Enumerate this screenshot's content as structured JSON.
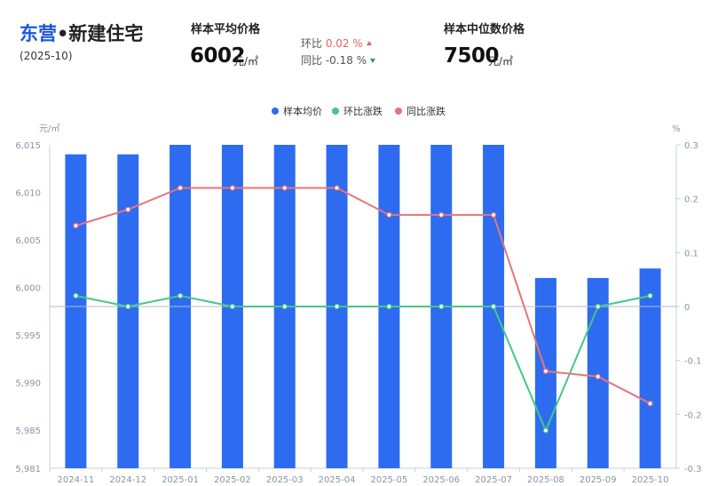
{
  "header": {
    "city": "东营",
    "title_rest": "•新建住宅",
    "period": "(2025-10)",
    "avg_label": "样本平均价格",
    "avg_value": "6002",
    "avg_unit": "元/㎡",
    "mom_label": "环比",
    "mom_value": "0.02 %",
    "yoy_label": "同比",
    "yoy_value": "-0.18 %",
    "median_label": "样本中位数价格",
    "median_value": "7500",
    "median_unit": "元/㎡"
  },
  "colors": {
    "bar": "#2d6cf0",
    "mom": "#45c883",
    "yoy": "#e8747a",
    "up": "#e8625f",
    "down": "#2e9a5a"
  },
  "chart_data": {
    "type": "bar",
    "categories": [
      "2024-11",
      "2024-12",
      "2025-01",
      "2025-02",
      "2025-03",
      "2025-04",
      "2025-05",
      "2025-06",
      "2025-07",
      "2025-08",
      "2025-09",
      "2025-10"
    ],
    "left_axis": {
      "unit": "元/㎡",
      "ylim": [
        5981,
        6015
      ],
      "ticks": [
        "6,015",
        "6,010",
        "6,005",
        "6,000",
        "5,995",
        "5,990",
        "5,985",
        "5,981"
      ]
    },
    "right_axis": {
      "unit": "%",
      "ylim": [
        -0.3,
        0.3
      ],
      "ticks": [
        "0.3",
        "0.2",
        "0.1",
        "0",
        "-0.1",
        "-0.2",
        "-0.3"
      ]
    },
    "series": [
      {
        "name": "样本均价",
        "type": "bar",
        "axis": "left",
        "values": [
          6014,
          6014,
          6015,
          6015,
          6015,
          6015,
          6015,
          6015,
          6015,
          6001,
          6001,
          6002
        ]
      },
      {
        "name": "环比涨跌",
        "type": "line",
        "axis": "right",
        "values": [
          0.02,
          0.0,
          0.02,
          0.0,
          0.0,
          0.0,
          0.0,
          0.0,
          0.0,
          -0.23,
          0.0,
          0.02
        ]
      },
      {
        "name": "同比涨跌",
        "type": "line",
        "axis": "right",
        "values": [
          0.15,
          0.18,
          0.22,
          0.22,
          0.22,
          0.22,
          0.17,
          0.17,
          0.17,
          -0.12,
          -0.13,
          -0.18
        ]
      }
    ],
    "legend_position": "top-center",
    "grid": false
  }
}
